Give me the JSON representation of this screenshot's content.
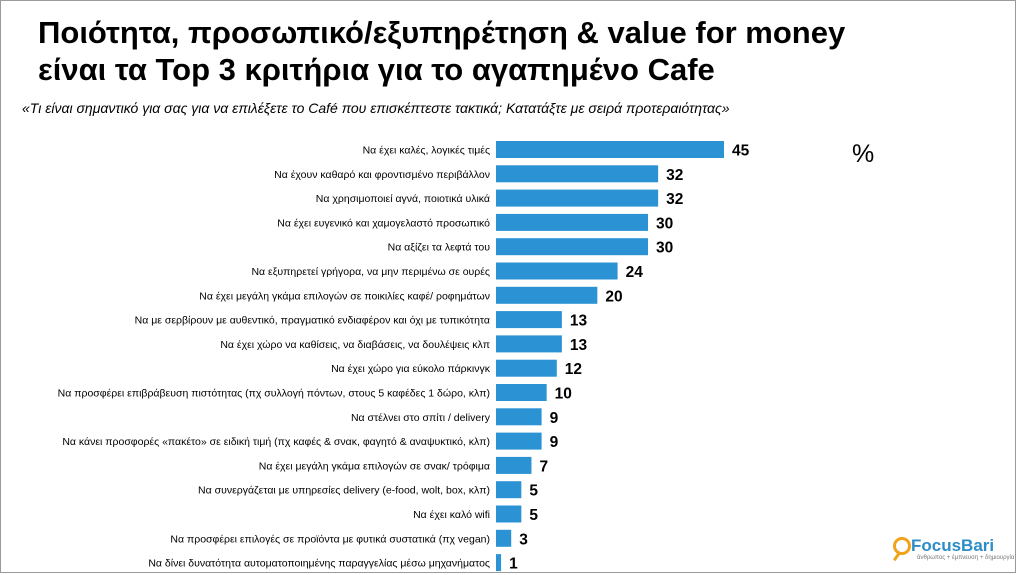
{
  "header": {
    "title_line1": "Ποιότητα, προσωπικό/εξυπηρέτηση & value for money",
    "title_line2": "είναι τα Top 3 κριτήρια για το αγαπημένο Cafe",
    "subtitle": "«Τι είναι σημαντικό για σας για να επιλέξετε το Café που επισκέπτεστε τακτικά;  Κατατάξτε με σειρά προτεραιότητας»",
    "unit": "%"
  },
  "logo": {
    "name": "FocusBari",
    "tagline": "άνθρωπος + έμπνευση + δημιουργία"
  },
  "colors": {
    "bar": "#2b92d4"
  },
  "chart_data": {
    "type": "bar",
    "orientation": "horizontal",
    "categories": [
      "Να έχει καλές, λογικές τιμές",
      "Να έχουν καθαρό και φροντισμένο περιβάλλον",
      "Να χρησιμοποιεί αγνά, ποιοτικά υλικά",
      "Να έχει ευγενικό και χαμογελαστό  προσωπικό",
      "Να αξίζει τα λεφτά του",
      "Να εξυπηρετεί γρήγορα, να μην περιμένω σε ουρές",
      "Να έχει μεγάλη γκάμα επιλογών σε ποικιλίες καφέ/ ροφημάτων",
      "Να με σερβίρουν με αυθεντικό, πραγματικό ενδιαφέρον και όχι με τυπικότητα",
      "Να έχει χώρο να καθίσεις, να διαβάσεις, να δουλέψεις κλπ",
      "Να έχει χώρο για εύκολο πάρκινγκ",
      "Να προσφέρει επιβράβευση πιστότητας (πχ συλλογή πόντων, στους 5 καφέδες 1 δώρο, κλπ)",
      "Να στέλνει στο σπίτι / delivery",
      "Να κάνει προσφορές «πακέτο» σε ειδική τιμή (πχ καφές & σνακ, φαγητό & αναψυκτικό, κλπ)",
      "Να έχει μεγάλη γκάμα επιλογών σε σνακ/ τρόφιμα",
      "Να συνεργάζεται με υπηρεσίες delivery (e-food, wolt, box, κλπ)",
      "Να έχει καλό wifi",
      "Να προσφέρει επιλογές σε προϊόντα με φυτικά συστατικά (πχ vegan)",
      "Να δίνει δυνατότητα αυτοματοποιημένης παραγγελίας μέσω μηχανήματος"
    ],
    "values": [
      45,
      32,
      32,
      30,
      30,
      24,
      20,
      13,
      13,
      12,
      10,
      9,
      9,
      7,
      5,
      5,
      3,
      1
    ],
    "xlim": [
      0,
      50
    ],
    "grid": false,
    "legend": "none"
  }
}
